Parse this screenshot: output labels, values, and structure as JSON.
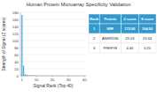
{
  "chart_data": {
    "type": "bar",
    "title": "Human Protein Microarray Specificity Validation",
    "xlabel": "Signal Rank (Top 40)",
    "ylabel": "Strength of Signal (Z scores)",
    "x": [
      1,
      2,
      3,
      4,
      5,
      6,
      7,
      8,
      9,
      10,
      11,
      12,
      13,
      14,
      15,
      16,
      17,
      18,
      19,
      20,
      21,
      22,
      23,
      24,
      25,
      26,
      27,
      28,
      29,
      30,
      31,
      32,
      33,
      34,
      35,
      36,
      37,
      38,
      39,
      40
    ],
    "values": [
      172.95,
      29.03,
      4.4,
      2.5,
      1.8,
      1.4,
      1.1,
      0.95,
      0.85,
      0.78,
      0.72,
      0.67,
      0.62,
      0.58,
      0.55,
      0.52,
      0.5,
      0.48,
      0.47,
      0.46,
      0.44,
      0.43,
      0.42,
      0.41,
      0.4,
      0.39,
      0.38,
      0.37,
      0.36,
      0.35,
      0.34,
      0.33,
      0.32,
      0.31,
      0.3,
      0.29,
      0.28,
      0.27,
      0.26,
      0.25
    ],
    "color": "#4bacd6",
    "xlim": [
      0,
      41
    ],
    "xticks": [
      1,
      10,
      20,
      30,
      40
    ],
    "ylim": [
      0,
      180
    ],
    "yticks": [
      0,
      20,
      40,
      60,
      80,
      100,
      120,
      140,
      160,
      180
    ],
    "table": {
      "header": [
        "Rank",
        "Protein",
        "Z score",
        "S score"
      ],
      "rows": [
        [
          "1",
          "SRF",
          "172.95",
          "164.92"
        ],
        [
          "2",
          "ANKRD36",
          "29.03",
          "23.64"
        ],
        [
          "3",
          "PRKFY8",
          "4.40",
          "0.25"
        ]
      ],
      "color": "#3399cc"
    }
  }
}
